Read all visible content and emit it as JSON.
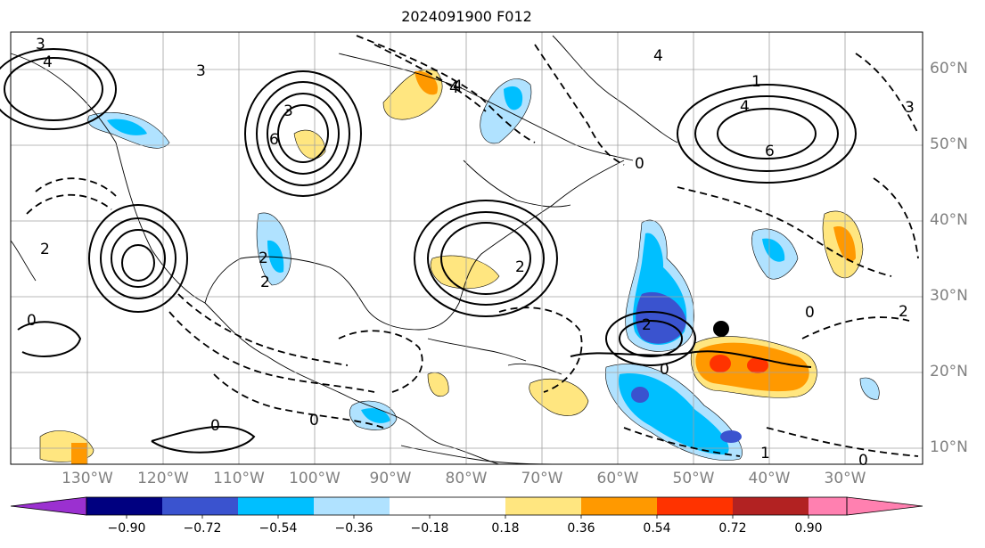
{
  "title": "2024091900 F012",
  "lon_labels": [
    "130°W",
    "120°W",
    "110°W",
    "100°W",
    "90°W",
    "80°W",
    "70°W",
    "60°W",
    "50°W",
    "40°W",
    "30°W"
  ],
  "lat_labels": [
    "60°N",
    "50°N",
    "40°N",
    "30°N",
    "20°N",
    "10°N"
  ],
  "colorbar": {
    "ticks": [
      "−0.90",
      "−0.72",
      "−0.54",
      "−0.36",
      "−0.18",
      "0.18",
      "0.36",
      "0.54",
      "0.72",
      "0.90"
    ],
    "colors": [
      "#9b30d0",
      "#000080",
      "#3a53cf",
      "#00bfff",
      "#b0e2ff",
      "#ffffff",
      "#ffe680",
      "#ff9900",
      "#ff3300",
      "#b22222",
      "#ff80b0"
    ]
  },
  "contour_labels": [
    "3",
    "4",
    "3",
    "6",
    "4",
    "2",
    "0",
    "3",
    "4",
    "4",
    "1",
    "4",
    "6",
    "3",
    "2",
    "0",
    "2",
    "2",
    "0",
    "0",
    "0",
    "2",
    "0",
    "1",
    "0",
    "2"
  ],
  "markers": [
    "storm-center-dot"
  ]
}
